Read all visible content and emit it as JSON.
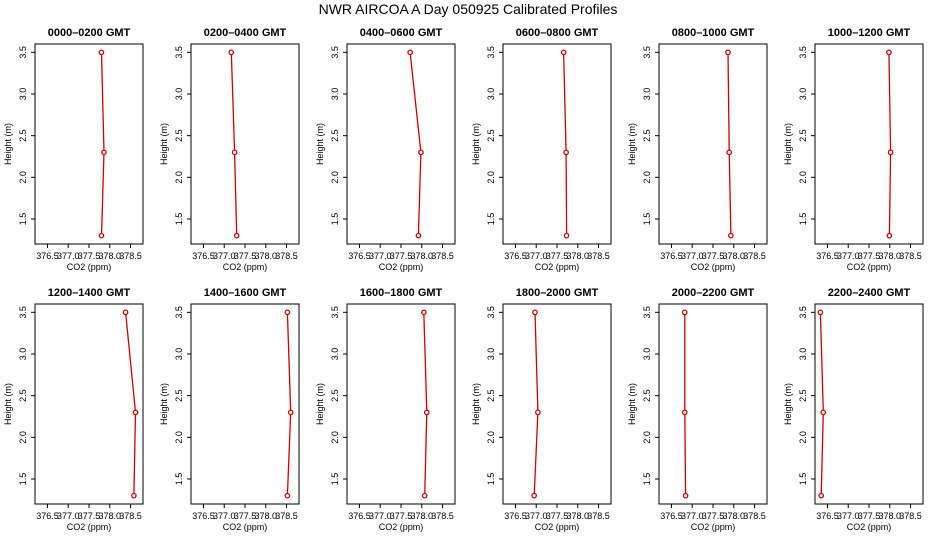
{
  "title": "NWR AIRCOA A  Day 050925  Calibrated Profiles",
  "colors": {
    "profile": "#d40000",
    "axes": "#000000",
    "background": "#ffffff"
  },
  "chart_data": {
    "type": "line",
    "layout": "2x6 small multiples",
    "xlabel": "CO2 (ppm)",
    "ylabel": "Height (m)",
    "xlim": [
      376.2,
      378.8
    ],
    "ylim": [
      1.2,
      3.6
    ],
    "x_ticks": [
      "376.5",
      "377.0",
      "377.5",
      "378.0",
      "378.5"
    ],
    "y_ticks": [
      "1.5",
      "2.0",
      "2.5",
      "3.0",
      "3.5"
    ],
    "grid": false,
    "legend": "none",
    "heights": [
      3.5,
      2.3,
      1.3
    ],
    "panels": [
      {
        "title": "0000–0200 GMT",
        "co2": [
          377.8,
          377.86,
          377.8
        ]
      },
      {
        "title": "0200–0400 GMT",
        "co2": [
          377.17,
          377.25,
          377.3
        ]
      },
      {
        "title": "0400–0600 GMT",
        "co2": [
          377.72,
          377.98,
          377.92
        ]
      },
      {
        "title": "0600–0800 GMT",
        "co2": [
          377.66,
          377.72,
          377.73
        ]
      },
      {
        "title": "0800–1000 GMT",
        "co2": [
          377.86,
          377.89,
          377.93
        ]
      },
      {
        "title": "1000–1200 GMT",
        "co2": [
          377.98,
          378.02,
          377.99
        ]
      },
      {
        "title": "1200–1400 GMT",
        "co2": [
          378.38,
          378.62,
          378.58
        ]
      },
      {
        "title": "1400–1600 GMT",
        "co2": [
          378.52,
          378.6,
          378.52
        ]
      },
      {
        "title": "1600–1800 GMT",
        "co2": [
          378.05,
          378.12,
          378.07
        ]
      },
      {
        "title": "1800–2000 GMT",
        "co2": [
          376.97,
          377.04,
          376.95
        ]
      },
      {
        "title": "2000–2200 GMT",
        "co2": [
          376.82,
          376.82,
          376.84
        ]
      },
      {
        "title": "2200–2400 GMT",
        "co2": [
          376.33,
          376.4,
          376.35
        ]
      }
    ]
  }
}
